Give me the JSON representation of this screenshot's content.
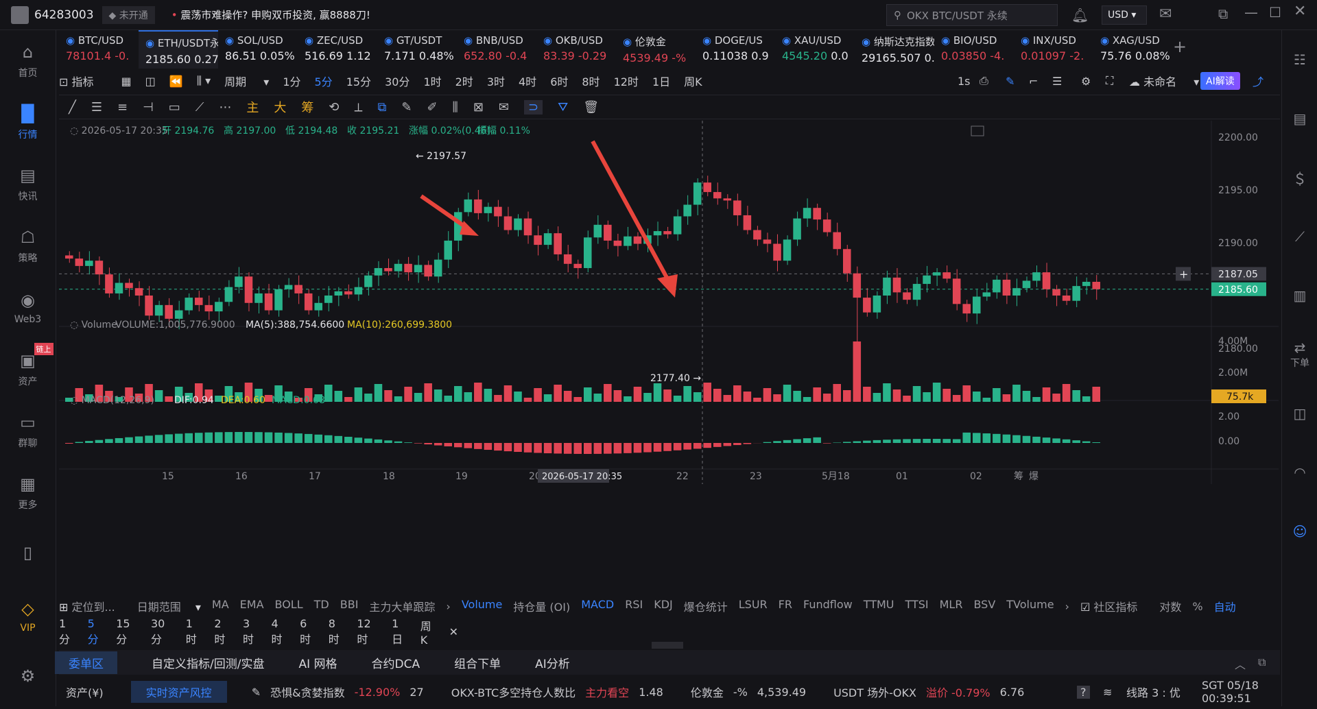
{
  "topbar": {
    "user_id": "64283003",
    "badge": "未开通",
    "news": "震荡市难操作? 申购双币投资, 赢8888刀!",
    "search_placeholder": "OKX BTC/USDT 永续",
    "currency": "USD"
  },
  "sidebar": {
    "items": [
      {
        "label": "首页",
        "icon": "home-icon"
      },
      {
        "label": "行情",
        "icon": "chart-bars-icon"
      },
      {
        "label": "快讯",
        "icon": "news-icon"
      },
      {
        "label": "策略",
        "icon": "robot-icon"
      },
      {
        "label": "Web3",
        "icon": "web3-icon"
      },
      {
        "label": "资产",
        "icon": "wallet-icon"
      },
      {
        "label": "群聊",
        "icon": "chat-icon"
      },
      {
        "label": "更多",
        "icon": "grid-icon"
      }
    ],
    "chain_badge": "链上",
    "vip_label": "VIP"
  },
  "tickers": [
    {
      "name": "BTC/USD",
      "price": "78101.4",
      "change": "-0."
    },
    {
      "name": "ETH/USDT永续",
      "price": "2185.60",
      "change": "0.27%"
    },
    {
      "name": "SOL/USD",
      "price": "86.51",
      "change": "0.05%"
    },
    {
      "name": "ZEC/USD",
      "price": "516.69",
      "change": "1.12"
    },
    {
      "name": "GT/USDT",
      "price": "7.171",
      "change": "0.48%"
    },
    {
      "name": "BNB/USD",
      "price": "652.80",
      "change": "-0.4"
    },
    {
      "name": "OKB/USD",
      "price": "83.39",
      "change": "-0.29"
    },
    {
      "name": "伦敦金",
      "price": "4539.49",
      "change": "-%"
    },
    {
      "name": "DOGE/US",
      "price": "0.11038",
      "change": "0.9"
    },
    {
      "name": "XAU/USD",
      "price": "4545.20",
      "change": "0.0"
    },
    {
      "name": "纳斯达克指数",
      "price": "29165.507",
      "change": "0.00"
    },
    {
      "name": "BIO/USD",
      "price": "0.03850",
      "change": "-4."
    },
    {
      "name": "INX/USD",
      "price": "0.01097",
      "change": "-2."
    },
    {
      "name": "XAG/USD",
      "price": "75.76",
      "change": "0.08%"
    }
  ],
  "toolbar": {
    "indicator": "指标",
    "period": "周期",
    "periods": [
      "1分",
      "5分",
      "15分",
      "30分",
      "1时",
      "2时",
      "3时",
      "4时",
      "6时",
      "8时",
      "12时",
      "1日",
      "周K"
    ],
    "selected_period": "5分",
    "interval": "1s",
    "unnamed": "未命名",
    "ai_label": "AI解读"
  },
  "drawtools": {
    "labels": [
      "主",
      "大",
      "筹"
    ]
  },
  "candle_info": {
    "datetime": "2026-05-17 20:35",
    "open": "开 2194.76",
    "high": "高 2197.00",
    "low": "低 2194.48",
    "close": "收 2195.21",
    "change": "涨幅 0.02%(0.46)",
    "amplitude": "振幅 0.11%"
  },
  "chart_data": {
    "type": "candlestick",
    "price_ticks": [
      "2200.00",
      "2195.00",
      "2190.00",
      "2180.00"
    ],
    "price_marks": [
      "2187.05",
      "2185.60"
    ],
    "high_label": "2197.57",
    "low_label": "2177.40",
    "volume_title": "Volume",
    "volume_value": "VOLUME:1,005,776.9000",
    "volume_ma5": "MA(5):388,754.6600",
    "volume_ma10": "MA(10):260,699.3800",
    "volume_ticks": [
      "4.00M",
      "2.00M"
    ],
    "volume_mark": "75.7k",
    "macd_title": "MACD(12,26,9)",
    "macd_dif": "DIF:0.94",
    "macd_dea": "DEA:0.60",
    "macd_val": "MACD:0.68",
    "macd_ticks": [
      "2.00",
      "0.00"
    ],
    "x_labels": [
      "15",
      "16",
      "17",
      "18",
      "19",
      "20",
      "22",
      "23",
      "5月18",
      "01",
      "02"
    ],
    "cursor_time": "2026-05-17 20:35",
    "corner_labels": [
      "筹",
      "爆"
    ]
  },
  "bottom_indicators": {
    "locate": "定位到...",
    "range": "日期范围",
    "items": [
      "MA",
      "EMA",
      "BOLL",
      "TD",
      "BBI",
      "主力大单跟踪"
    ],
    "sub_items": [
      "Volume",
      "持仓量 (OI)",
      "MACD",
      "RSI",
      "KDJ",
      "爆仓统计",
      "LSUR",
      "FR",
      "Fundflow",
      "TTMU",
      "TTSI",
      "MLR",
      "BSV",
      "TVolume"
    ],
    "community": "社区指标",
    "log": "对数",
    "pct": "%",
    "auto": "自动"
  },
  "period_row": [
    "1分",
    "5分",
    "15分",
    "30分",
    "1时",
    "2时",
    "3时",
    "4时",
    "6时",
    "8时",
    "12时",
    "1日",
    "周K"
  ],
  "tabs": [
    "委单区",
    "自定义指标/回测/实盘",
    "AI 网格",
    "合约DCA",
    "组合下单",
    "AI分析"
  ],
  "statusbar": {
    "asset": "资产(¥)",
    "risk": "实时资产风控",
    "fear_label": "恐惧&贪婪指数",
    "fear_change": "-12.90%",
    "fear_val": "27",
    "okx_label": "OKX-BTC多空持仓人数比",
    "okx_tag": "主力看空",
    "okx_val": "1.48",
    "gold_label": "伦敦金",
    "gold_change": "-%",
    "gold_val": "4,539.49",
    "usdt_label": "USDT 场外-OKX",
    "usdt_prem": "溢价 -0.79%",
    "usdt_val": "6.76",
    "line": "线路 3 : 优",
    "time": "SGT 05/18 00:39:51"
  },
  "right_sidebar": {
    "order_label": "下单"
  },
  "colors": {
    "up": "#29b38b",
    "down": "#e14554",
    "accent": "#3a84ff"
  }
}
